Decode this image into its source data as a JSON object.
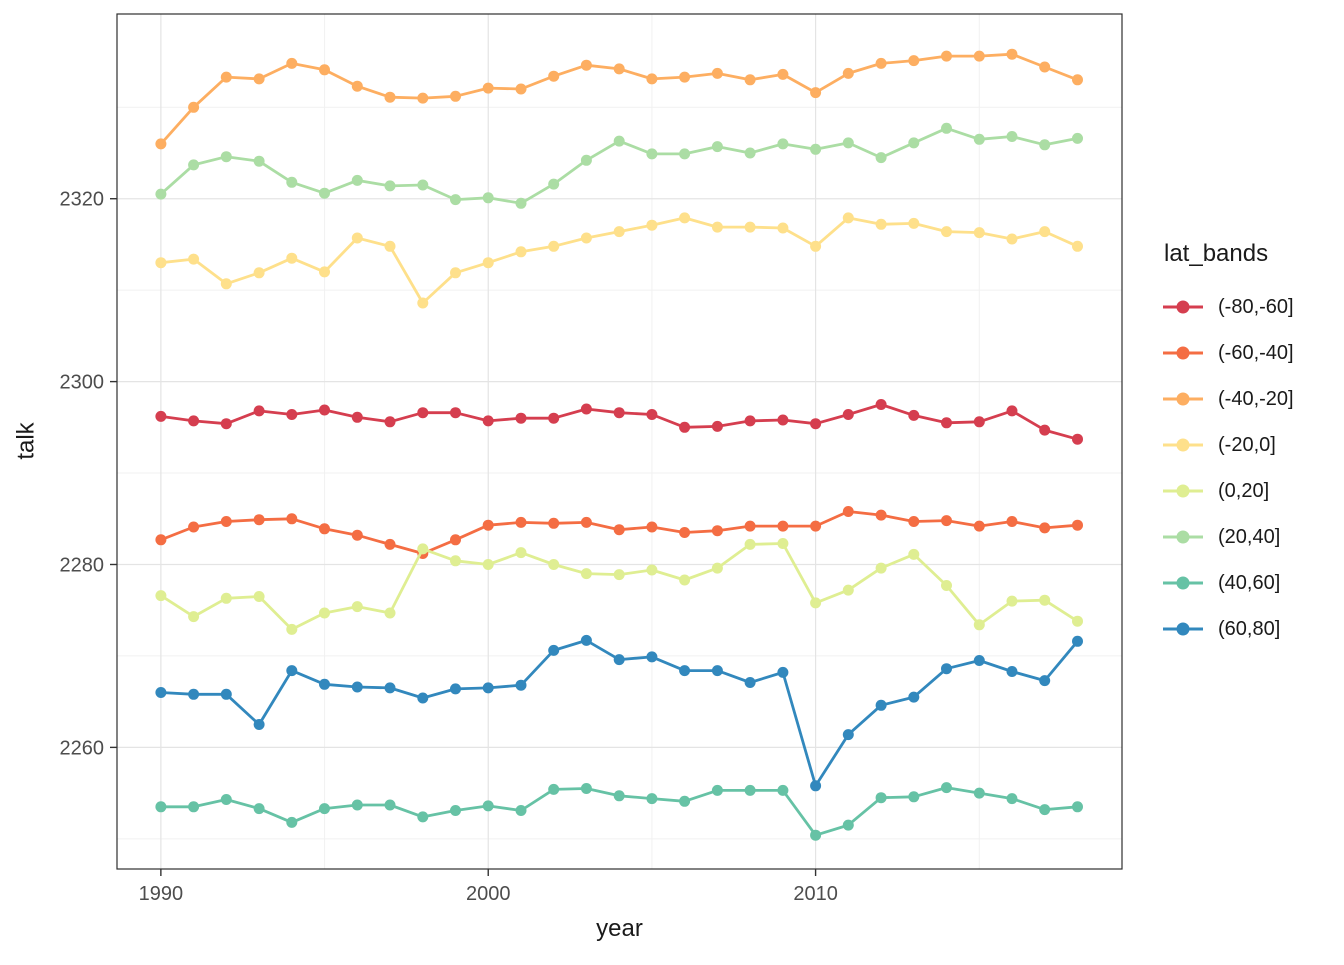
{
  "chart_data": {
    "type": "line",
    "title": "",
    "xlabel": "year",
    "ylabel": "talk",
    "x": [
      1990,
      1991,
      1992,
      1993,
      1994,
      1995,
      1996,
      1997,
      1998,
      1999,
      2000,
      2001,
      2002,
      2003,
      2004,
      2005,
      2006,
      2007,
      2008,
      2009,
      2010,
      2011,
      2012,
      2013,
      2014,
      2015,
      2016,
      2017,
      2018
    ],
    "series": [
      {
        "name": "(-80,-60]",
        "color": "#d53e4f",
        "values": [
          2296.2,
          2295.7,
          2295.4,
          2296.8,
          2296.4,
          2296.9,
          2296.1,
          2295.6,
          2296.6,
          2296.6,
          2295.7,
          2296.0,
          2296.0,
          2297.0,
          2296.6,
          2296.4,
          2295.0,
          2295.1,
          2295.7,
          2295.8,
          2295.4,
          2296.4,
          2297.5,
          2296.3,
          2295.5,
          2295.6,
          2296.8,
          2294.7,
          2293.7
        ]
      },
      {
        "name": "(-60,-40]",
        "color": "#f46d43",
        "values": [
          2282.7,
          2284.1,
          2284.7,
          2284.9,
          2285.0,
          2283.9,
          2283.2,
          2282.2,
          2281.2,
          2282.7,
          2284.3,
          2284.6,
          2284.5,
          2284.6,
          2283.8,
          2284.1,
          2283.5,
          2283.7,
          2284.2,
          2284.2,
          2284.2,
          2285.8,
          2285.4,
          2284.7,
          2284.8,
          2284.2,
          2284.7,
          2284.0,
          2284.3
        ]
      },
      {
        "name": "(-40,-20]",
        "color": "#fdae61",
        "values": [
          2326.0,
          2330.0,
          2333.3,
          2333.1,
          2334.8,
          2334.1,
          2332.3,
          2331.1,
          2331.0,
          2331.2,
          2332.1,
          2332.0,
          2333.4,
          2334.6,
          2334.2,
          2333.1,
          2333.3,
          2333.7,
          2333.0,
          2333.6,
          2331.6,
          2333.7,
          2334.8,
          2335.1,
          2335.6,
          2335.6,
          2335.8,
          2334.4,
          2333.0
        ]
      },
      {
        "name": "(-20,0]",
        "color": "#fee08b",
        "values": [
          2313.0,
          2313.4,
          2310.7,
          2311.9,
          2313.5,
          2312.0,
          2315.7,
          2314.8,
          2308.6,
          2311.9,
          2313.0,
          2314.2,
          2314.8,
          2315.7,
          2316.4,
          2317.1,
          2317.9,
          2316.9,
          2316.9,
          2316.8,
          2314.8,
          2317.9,
          2317.2,
          2317.3,
          2316.4,
          2316.3,
          2315.6,
          2316.4,
          2314.8
        ]
      },
      {
        "name": "(0,20]",
        "color": "#dfee92",
        "values": [
          2276.6,
          2274.3,
          2276.3,
          2276.5,
          2272.9,
          2274.7,
          2275.4,
          2274.7,
          2281.7,
          2280.4,
          2280.0,
          2281.3,
          2280.0,
          2279.0,
          2278.9,
          2279.4,
          2278.3,
          2279.6,
          2282.2,
          2282.3,
          2275.8,
          2277.2,
          2279.6,
          2281.1,
          2277.7,
          2273.4,
          2276.0,
          2276.1,
          2273.8
        ]
      },
      {
        "name": "(20,40]",
        "color": "#abdda4",
        "values": [
          2320.5,
          2323.7,
          2324.6,
          2324.1,
          2321.8,
          2320.6,
          2322.0,
          2321.4,
          2321.5,
          2319.9,
          2320.1,
          2319.5,
          2321.6,
          2324.2,
          2326.3,
          2324.9,
          2324.9,
          2325.7,
          2325.0,
          2326.0,
          2325.4,
          2326.1,
          2324.5,
          2326.1,
          2327.7,
          2326.5,
          2326.8,
          2325.9,
          2326.6
        ]
      },
      {
        "name": "(40,60]",
        "color": "#66c2a5",
        "values": [
          2253.5,
          2253.5,
          2254.3,
          2253.3,
          2251.8,
          2253.3,
          2253.7,
          2253.7,
          2252.4,
          2253.1,
          2253.6,
          2253.1,
          2255.4,
          2255.5,
          2254.7,
          2254.4,
          2254.1,
          2255.3,
          2255.3,
          2255.3,
          2250.4,
          2251.5,
          2254.5,
          2254.6,
          2255.6,
          2255.0,
          2254.4,
          2253.2,
          2253.5
        ]
      },
      {
        "name": "(60,80]",
        "color": "#3288bd",
        "values": [
          2266.0,
          2265.8,
          2265.8,
          2262.5,
          2268.4,
          2266.9,
          2266.6,
          2266.5,
          2265.4,
          2266.4,
          2266.5,
          2266.8,
          2270.6,
          2271.7,
          2269.6,
          2269.9,
          2268.4,
          2268.4,
          2267.1,
          2268.2,
          2255.8,
          2261.4,
          2264.6,
          2265.5,
          2268.6,
          2269.5,
          2268.3,
          2267.3,
          2271.6
        ]
      }
    ],
    "x_ticks": [
      1990,
      2000,
      2010
    ],
    "x_minor_ticks": [
      1995,
      2005,
      2015
    ],
    "y_ticks": [
      2260,
      2280,
      2300,
      2320
    ],
    "y_minor_ticks": [
      2250,
      2270,
      2290,
      2310,
      2330
    ],
    "xlim": [
      1988.66,
      2019.36
    ],
    "ylim": [
      2246.7,
      2340.2
    ],
    "grid": "major and minor, light grey on white panel",
    "legend_position": "right"
  },
  "legend": {
    "title": "lat_bands",
    "items": [
      {
        "label": "(-80,-60]",
        "color": "#d53e4f"
      },
      {
        "label": "(-60,-40]",
        "color": "#f46d43"
      },
      {
        "label": "(-40,-20]",
        "color": "#fdae61"
      },
      {
        "label": "(-20,0]",
        "color": "#fee08b"
      },
      {
        "label": "(0,20]",
        "color": "#dfee92"
      },
      {
        "label": "(20,40]",
        "color": "#abdda4"
      },
      {
        "label": "(40,60]",
        "color": "#66c2a5"
      },
      {
        "label": "(60,80]",
        "color": "#3288bd"
      }
    ]
  },
  "style": {
    "panel_border_color": "#2e2e2e",
    "grid_major_color": "#e4e4e4",
    "grid_minor_color": "#f1f1f1",
    "tick_color": "#333333",
    "tick_label_color": "#4d4d4d",
    "background": "#ffffff"
  }
}
